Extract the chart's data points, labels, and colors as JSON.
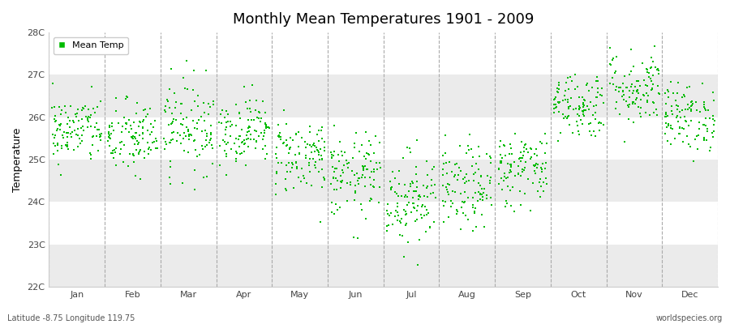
{
  "title": "Monthly Mean Temperatures 1901 - 2009",
  "ylabel": "Temperature",
  "ylim": [
    22,
    28
  ],
  "yticks": [
    22,
    23,
    24,
    25,
    26,
    27,
    28
  ],
  "ytick_labels": [
    "22C",
    "23C",
    "24C",
    "25C",
    "26C",
    "27C",
    "28C"
  ],
  "months": [
    "Jan",
    "Feb",
    "Mar",
    "Apr",
    "May",
    "Jun",
    "Jul",
    "Aug",
    "Sep",
    "Oct",
    "Nov",
    "Dec"
  ],
  "n_years": 109,
  "dot_color": "#00bb00",
  "background_color": "#ffffff",
  "band_color_white": "#ffffff",
  "band_color_gray": "#ebebeb",
  "footer_left": "Latitude -8.75 Longitude 119.75",
  "footer_right": "worldspecies.org",
  "legend_label": "Mean Temp",
  "month_means": [
    25.7,
    25.5,
    25.8,
    25.7,
    25.1,
    24.6,
    24.1,
    24.3,
    24.8,
    26.3,
    26.7,
    26.0
  ],
  "month_stds": [
    0.4,
    0.45,
    0.55,
    0.4,
    0.45,
    0.5,
    0.55,
    0.5,
    0.45,
    0.4,
    0.45,
    0.4
  ]
}
